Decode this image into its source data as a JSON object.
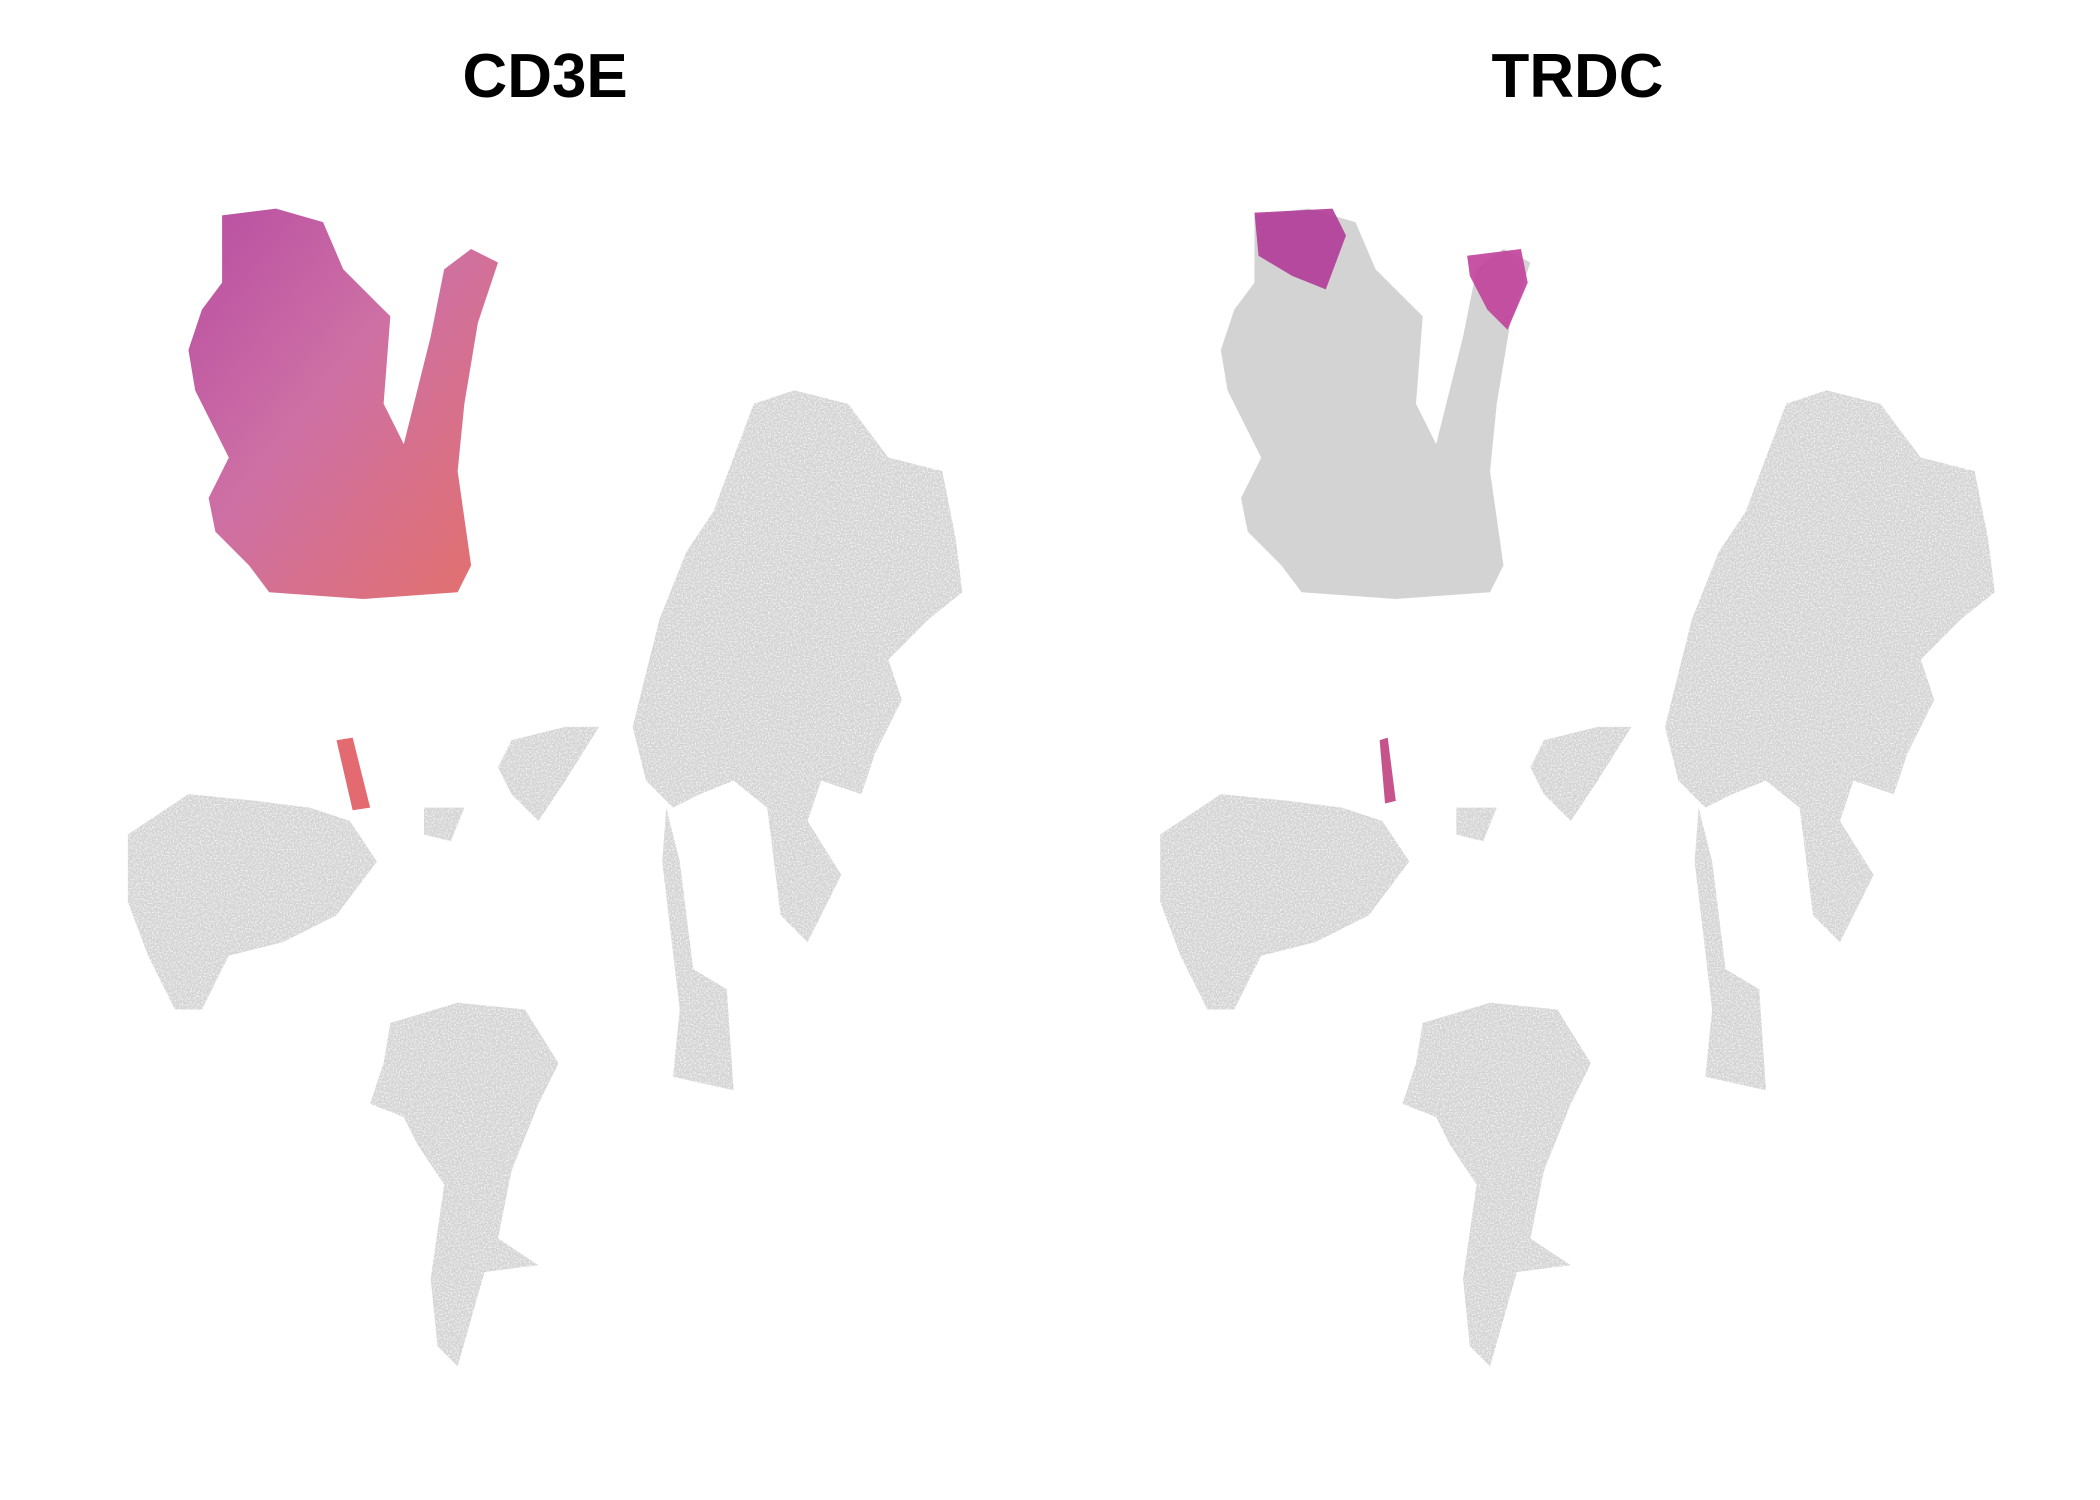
{
  "chart_data": [
    {
      "type": "scatter",
      "title": "CD3E",
      "color": "#d3d3d3"
    },
    {
      "type": "scatter",
      "title": "TRDC",
      "color": "#d3d3d3"
    }
  ]
}
